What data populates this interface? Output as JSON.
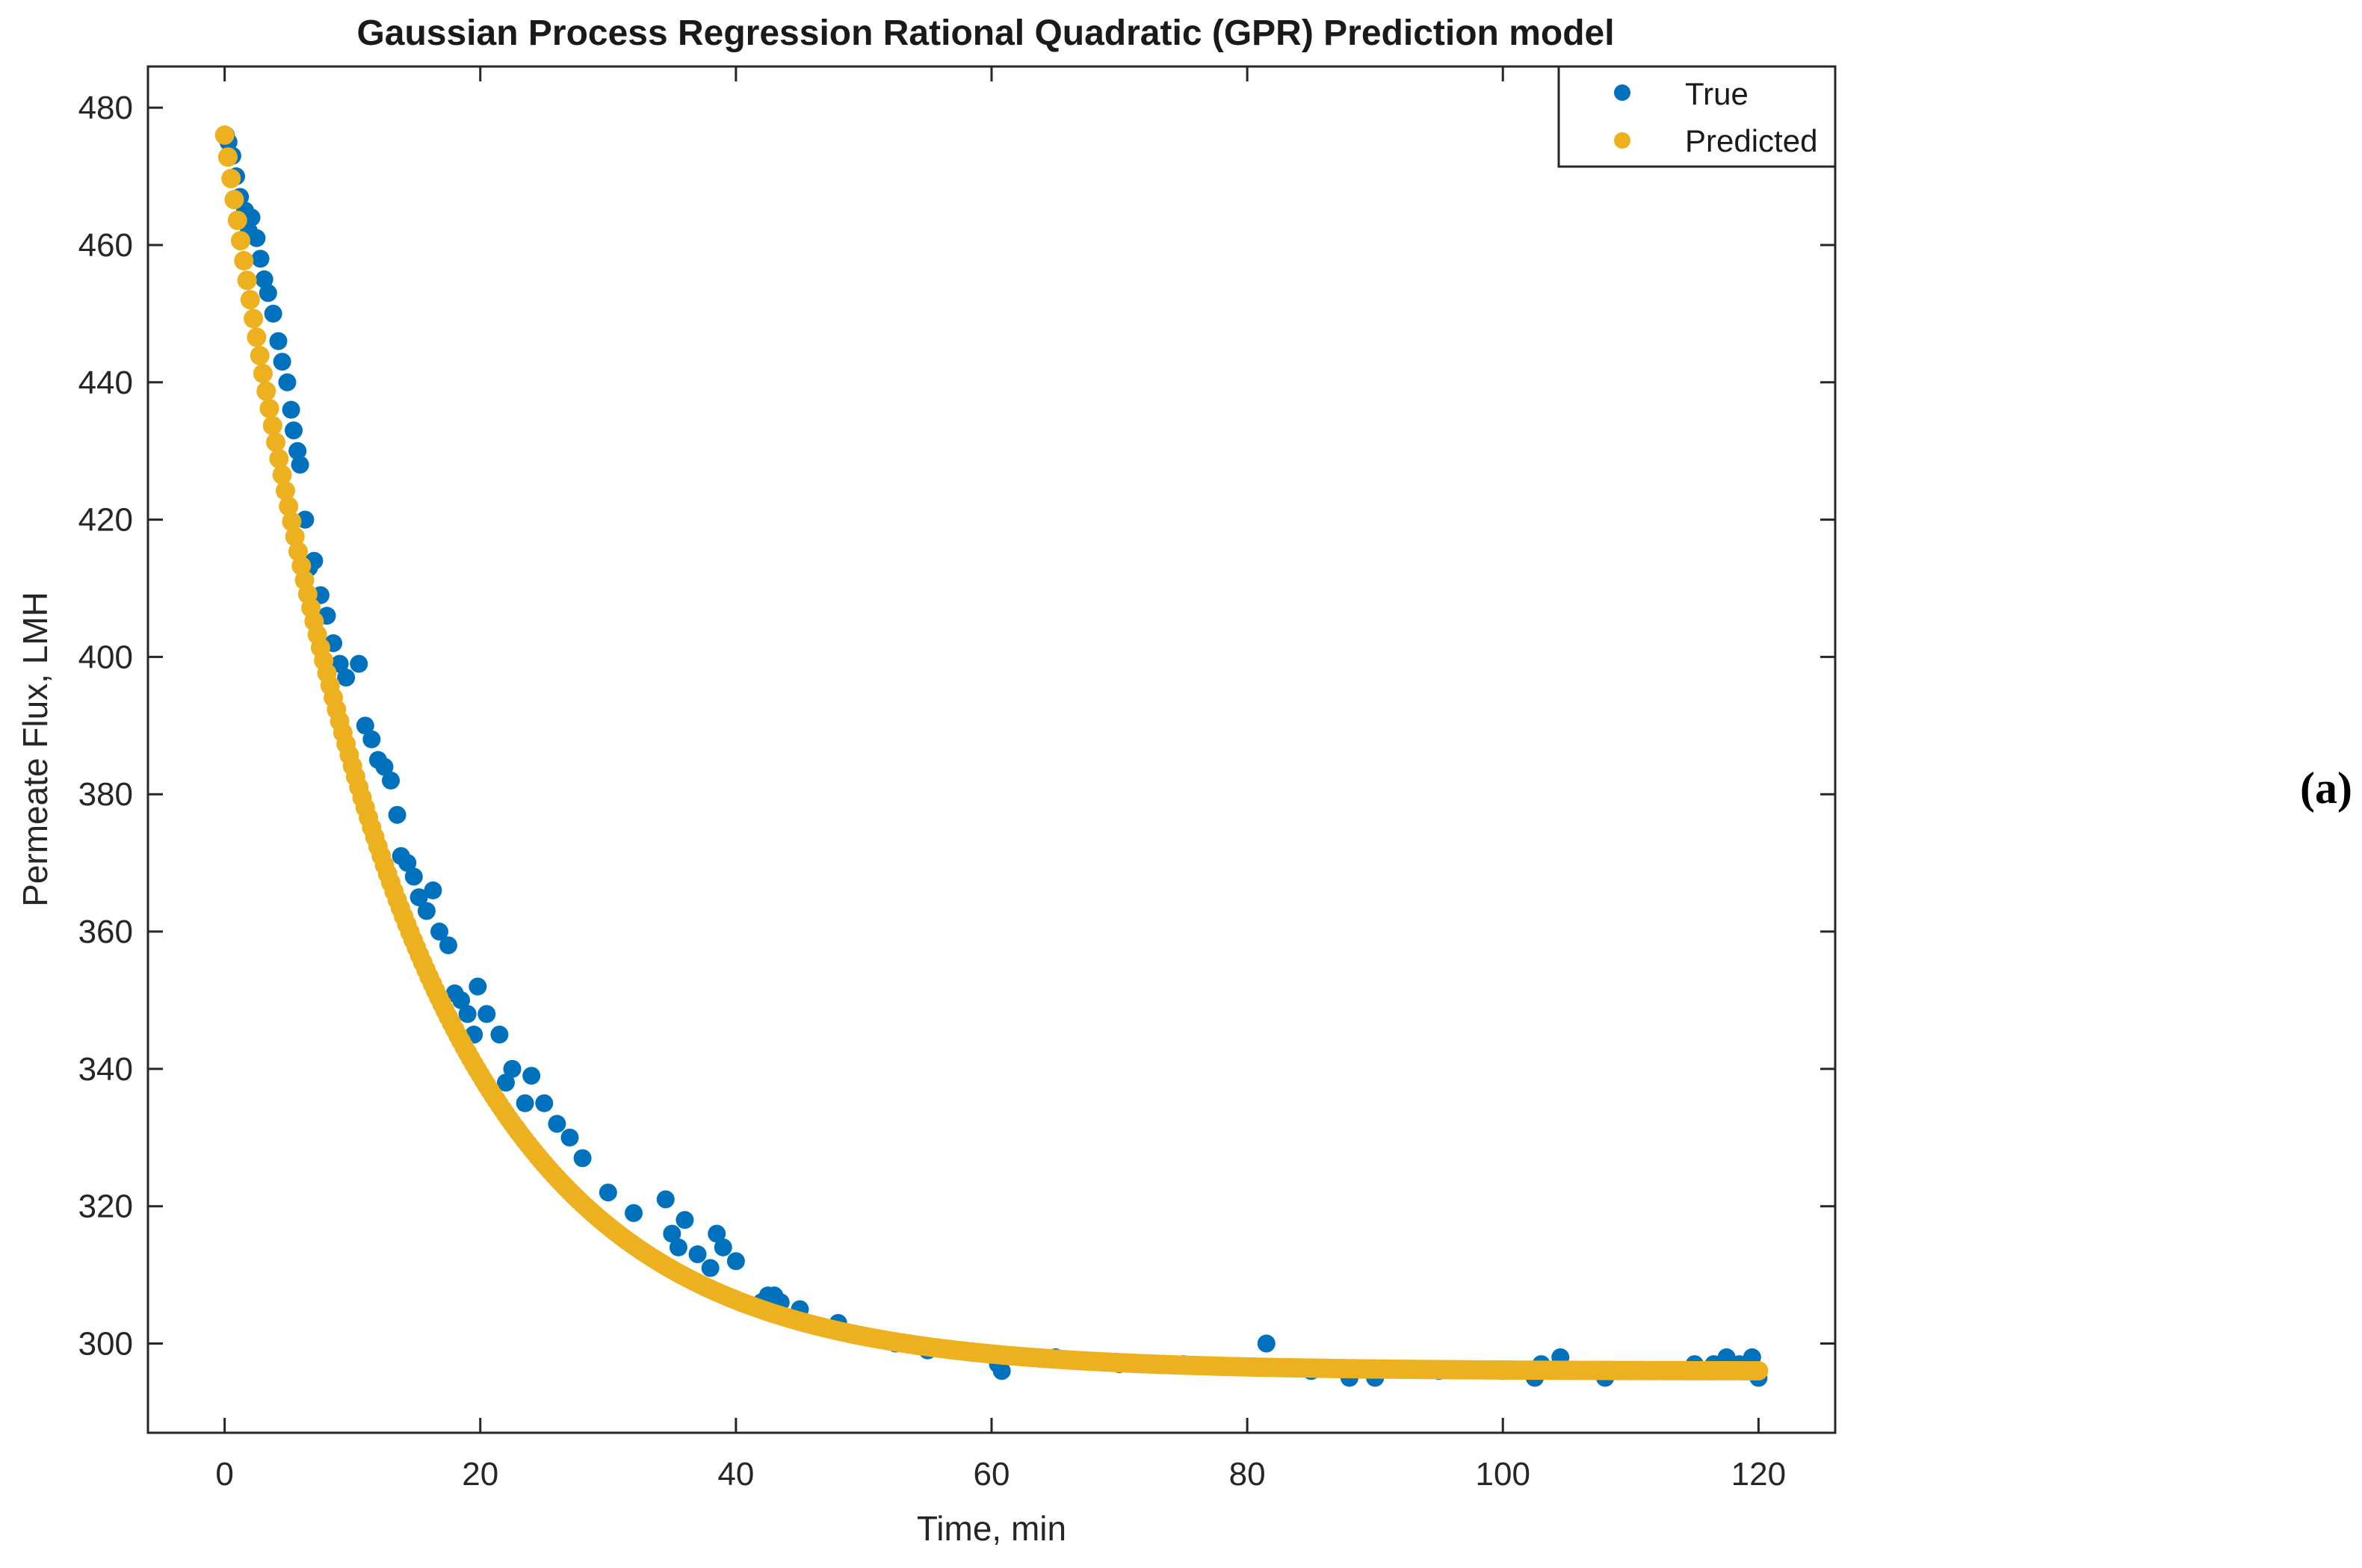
{
  "chart_data": {
    "type": "scatter",
    "title": "Gaussian Process Regression Rational Quadratic (GPR) Prediction model",
    "xlabel": "Time, min",
    "ylabel": "Permeate Flux, LMH",
    "xlim": [
      -6,
      126
    ],
    "ylim": [
      287,
      486
    ],
    "xticks": [
      0,
      20,
      40,
      60,
      80,
      100,
      120
    ],
    "yticks": [
      300,
      320,
      340,
      360,
      380,
      400,
      420,
      440,
      460,
      480
    ],
    "grid": false,
    "legend_position": "top-right",
    "panel_label": "(a)",
    "model": {
      "form": "asymptote + amplitude * exp(-time / tau)",
      "asymptote": 296,
      "amplitude": 180,
      "tau": 14,
      "time_start": 0,
      "time_end": 120
    },
    "series": [
      {
        "name": "True",
        "color": "#0072BD",
        "points": [
          [
            0.1,
            476
          ],
          [
            0.3,
            475
          ],
          [
            0.6,
            473
          ],
          [
            0.9,
            470
          ],
          [
            1.2,
            467
          ],
          [
            1.6,
            465
          ],
          [
            1.9,
            462
          ],
          [
            2.1,
            464
          ],
          [
            2.5,
            461
          ],
          [
            2.8,
            458
          ],
          [
            3.1,
            455
          ],
          [
            3.4,
            453
          ],
          [
            3.8,
            450
          ],
          [
            4.2,
            446
          ],
          [
            4.5,
            443
          ],
          [
            4.9,
            440
          ],
          [
            5.2,
            436
          ],
          [
            5.4,
            433
          ],
          [
            5.7,
            430
          ],
          [
            5.9,
            428
          ],
          [
            6.3,
            420
          ],
          [
            6.6,
            413
          ],
          [
            7.0,
            414
          ],
          [
            7.5,
            409
          ],
          [
            8.0,
            406
          ],
          [
            8.5,
            402
          ],
          [
            9.0,
            399
          ],
          [
            9.5,
            397
          ],
          [
            10.5,
            399
          ],
          [
            11.0,
            390
          ],
          [
            11.5,
            388
          ],
          [
            12.0,
            385
          ],
          [
            12.5,
            384
          ],
          [
            13.0,
            382
          ],
          [
            13.5,
            377
          ],
          [
            13.8,
            371
          ],
          [
            14.3,
            370
          ],
          [
            14.8,
            368
          ],
          [
            15.2,
            365
          ],
          [
            15.8,
            363
          ],
          [
            16.3,
            366
          ],
          [
            16.8,
            360
          ],
          [
            17.5,
            358
          ],
          [
            18.0,
            351
          ],
          [
            18.5,
            350
          ],
          [
            19.0,
            348
          ],
          [
            19.5,
            345
          ],
          [
            19.8,
            352
          ],
          [
            20.5,
            348
          ],
          [
            21.5,
            345
          ],
          [
            22.0,
            338
          ],
          [
            22.5,
            340
          ],
          [
            23.5,
            335
          ],
          [
            24.0,
            339
          ],
          [
            25.0,
            335
          ],
          [
            26.0,
            332
          ],
          [
            27.0,
            330
          ],
          [
            28.0,
            327
          ],
          [
            30.0,
            322
          ],
          [
            32.0,
            319
          ],
          [
            34.5,
            321
          ],
          [
            35.0,
            316
          ],
          [
            35.5,
            314
          ],
          [
            36.0,
            318
          ],
          [
            37.0,
            313
          ],
          [
            38.0,
            311
          ],
          [
            38.5,
            316
          ],
          [
            39.0,
            314
          ],
          [
            40.0,
            312
          ],
          [
            42.0,
            306
          ],
          [
            42.5,
            307
          ],
          [
            43.0,
            307
          ],
          [
            43.5,
            306
          ],
          [
            45.0,
            305
          ],
          [
            48.0,
            303
          ],
          [
            52.5,
            300
          ],
          [
            55.0,
            299
          ],
          [
            60.5,
            297
          ],
          [
            60.8,
            296
          ],
          [
            65.0,
            298
          ],
          [
            70.0,
            297
          ],
          [
            75.0,
            297
          ],
          [
            81.5,
            300
          ],
          [
            85.0,
            296
          ],
          [
            88.0,
            295
          ],
          [
            90.0,
            295
          ],
          [
            95.0,
            296
          ],
          [
            100.0,
            296
          ],
          [
            102.5,
            295
          ],
          [
            103.0,
            297
          ],
          [
            104.5,
            298
          ],
          [
            106.0,
            296
          ],
          [
            108.0,
            295
          ],
          [
            110.0,
            296
          ],
          [
            112.0,
            296
          ],
          [
            115.0,
            297
          ],
          [
            116.5,
            297
          ],
          [
            117.5,
            298
          ],
          [
            118.5,
            297
          ],
          [
            119.5,
            298
          ],
          [
            120.0,
            295
          ]
        ]
      },
      {
        "name": "Predicted",
        "color": "#EDB120",
        "points": "model curve sampled densely from time 0 to 120"
      }
    ]
  }
}
